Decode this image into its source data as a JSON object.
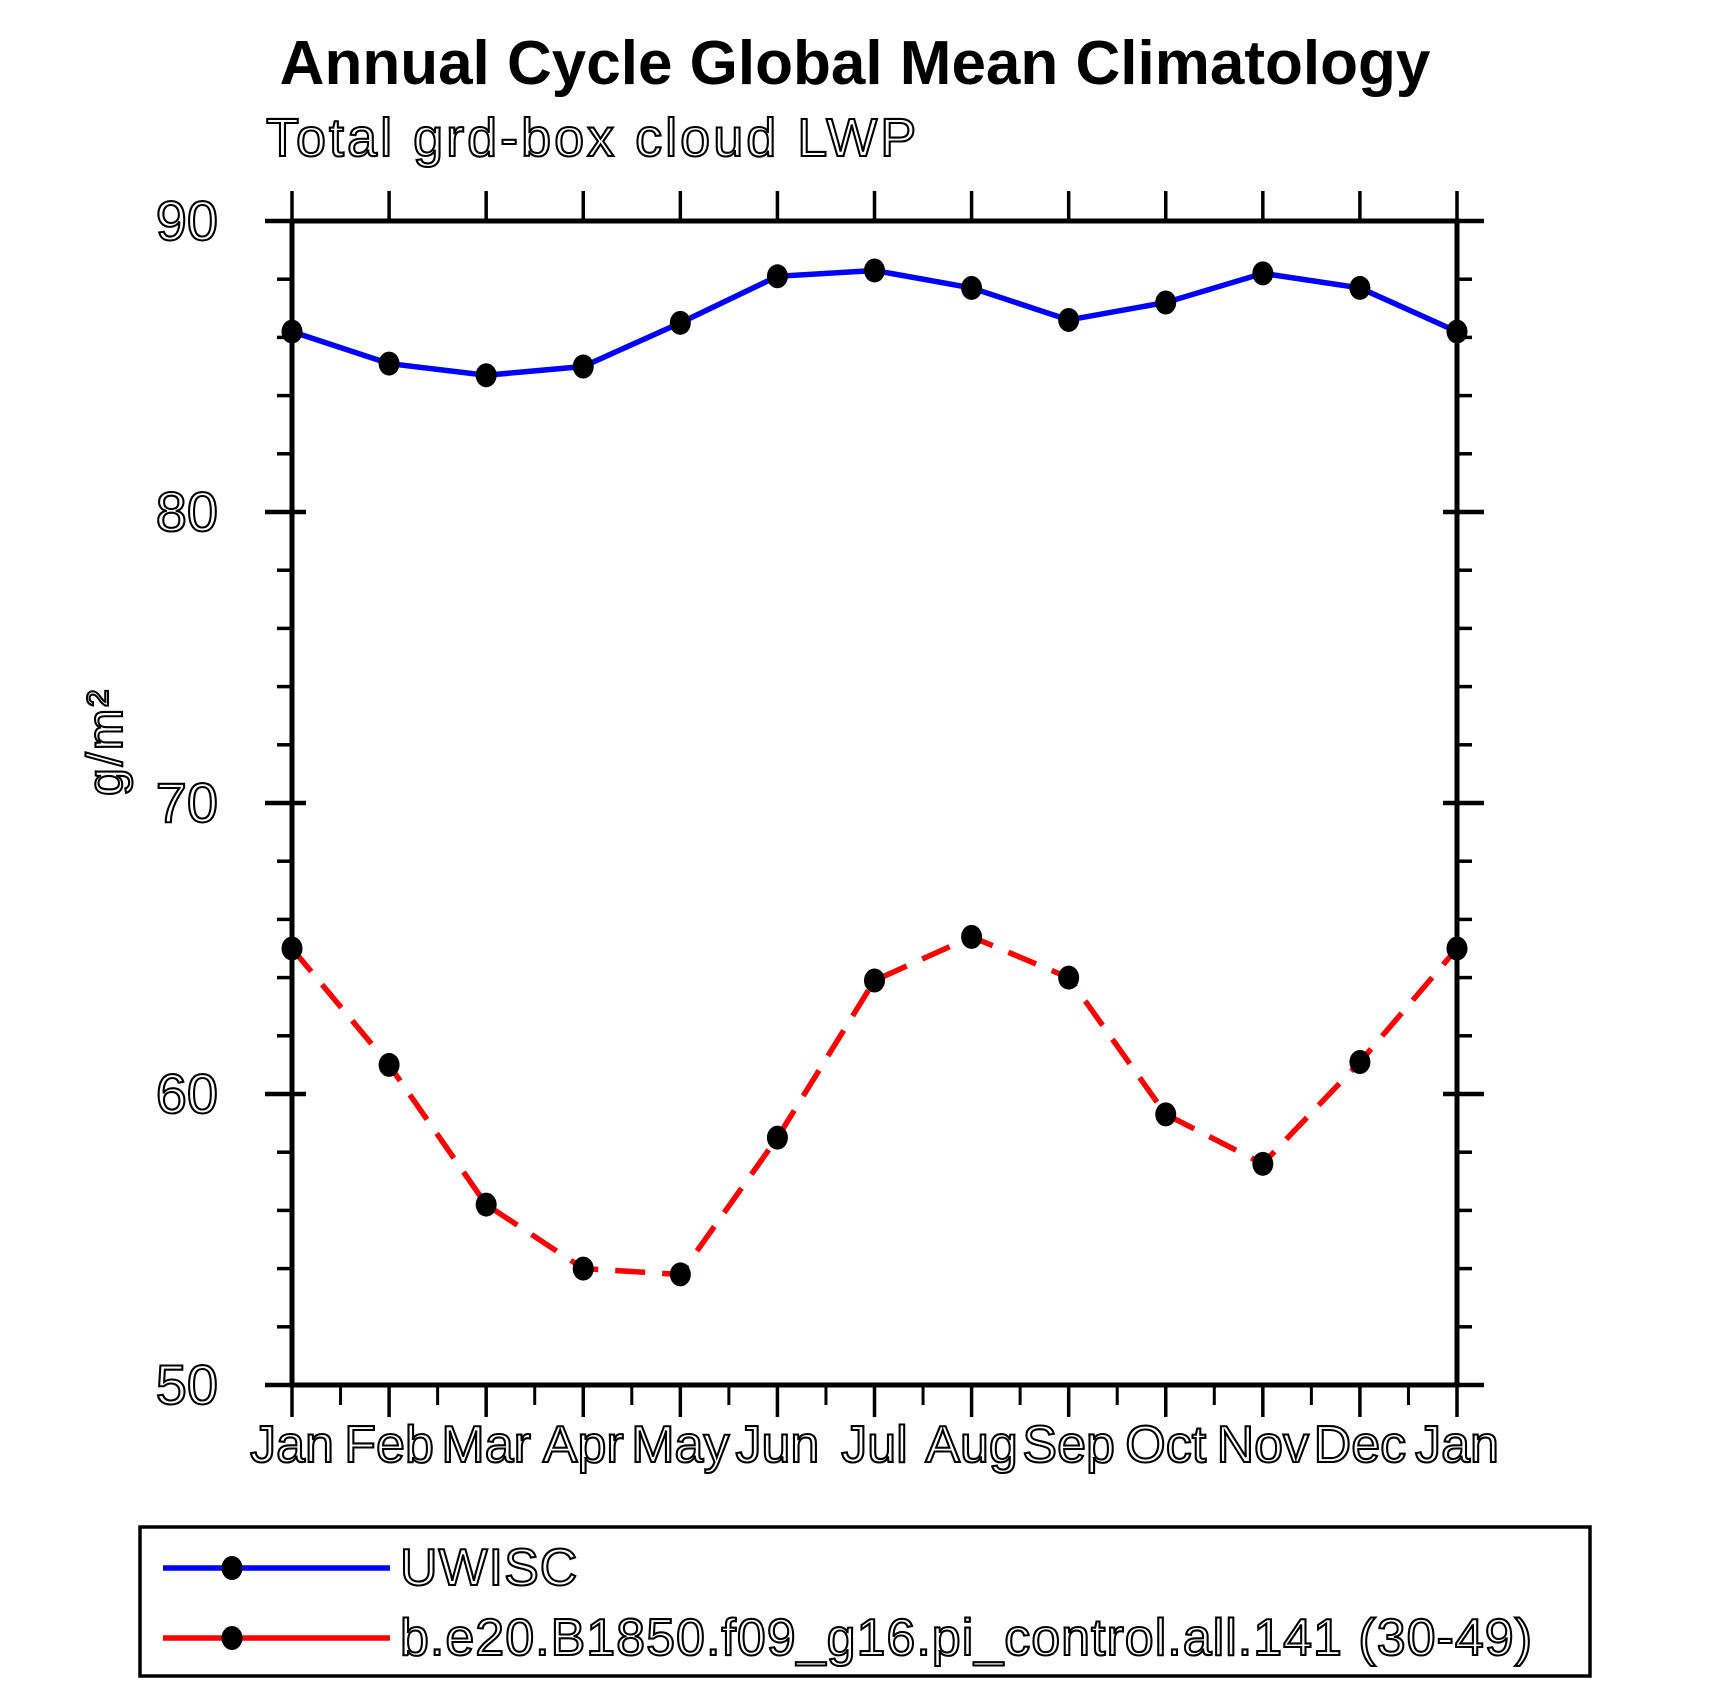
{
  "chart_data": {
    "type": "line",
    "title": "Annual Cycle Global Mean Climatology",
    "subtitle": "Total grd-box cloud LWP",
    "ylabel": "g/m²",
    "xlabel": "",
    "categories": [
      "Jan",
      "Feb",
      "Mar",
      "Apr",
      "May",
      "Jun",
      "Jul",
      "Aug",
      "Sep",
      "Oct",
      "Nov",
      "Dec",
      "Jan"
    ],
    "ylim": [
      50,
      90
    ],
    "ytick_major": [
      90,
      80,
      70,
      60,
      50
    ],
    "ytick_minor_step": 2,
    "xtick_minor_per_month": true,
    "grid": "off",
    "legend_position": "bottom-left-box",
    "marker": "filled-black-circle",
    "series": [
      {
        "name": "UWISC",
        "color": "#0000ff",
        "line_style": "solid",
        "dash": "none",
        "values": [
          86.2,
          85.1,
          84.7,
          85.0,
          86.5,
          88.1,
          88.3,
          87.7,
          86.6,
          87.2,
          88.2,
          87.7,
          86.2
        ]
      },
      {
        "name": "b.e20.B1850.f09_g16.pi_control.all.141 (30-49)",
        "color": "#ff0000",
        "line_style": "dashed",
        "dash": "30 17",
        "values": [
          65.0,
          61.0,
          56.2,
          54.0,
          53.8,
          58.5,
          63.9,
          65.4,
          64.0,
          59.3,
          57.6,
          61.1,
          65.0
        ]
      }
    ]
  }
}
